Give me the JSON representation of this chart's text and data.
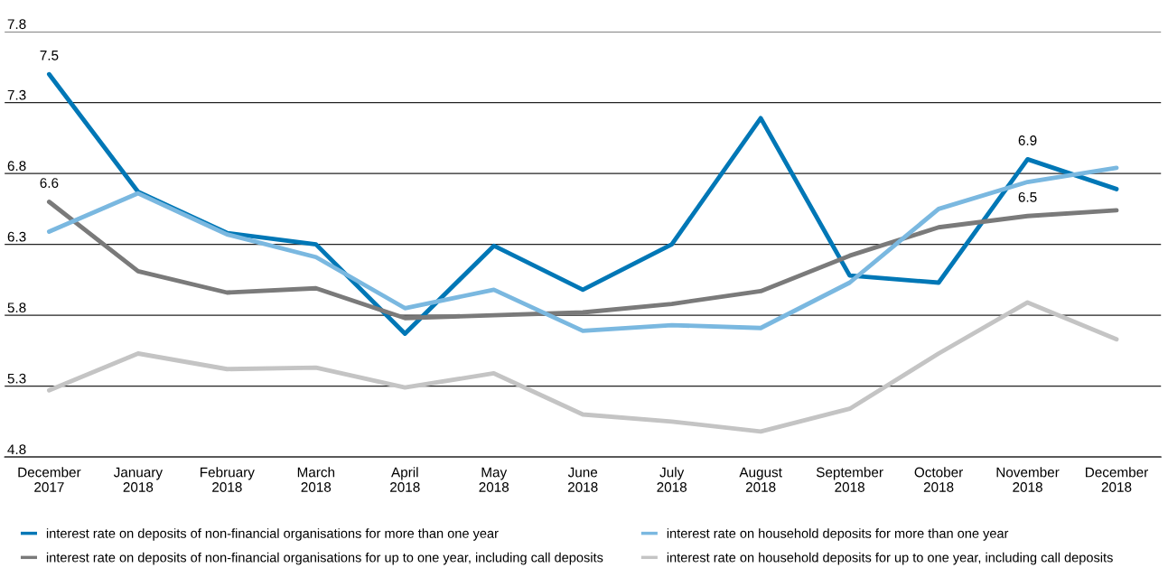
{
  "chart_data": {
    "type": "line",
    "categories": [
      "December\n2017",
      "January\n2018",
      "February\n2018",
      "March\n2018",
      "April\n2018",
      "May\n2018",
      "June\n2018",
      "July\n2018",
      "August\n2018",
      "September\n2018",
      "October\n2018",
      "November\n2018",
      "December\n2018"
    ],
    "series": [
      {
        "name": "interest rate on deposits of non-financial organisations for more than one year",
        "color": "#0077b6",
        "values": [
          7.5,
          6.67,
          6.38,
          6.3,
          5.67,
          6.29,
          5.98,
          6.3,
          7.19,
          6.08,
          6.03,
          6.9,
          6.69
        ],
        "value_labels": [
          "7.5",
          null,
          null,
          null,
          null,
          null,
          null,
          null,
          null,
          null,
          null,
          "6.9",
          null
        ]
      },
      {
        "name": "interest rate on deposits of non-financial organisations for up to one year, including call deposits",
        "color": "#7a7a7a",
        "values": [
          6.6,
          6.11,
          5.96,
          5.99,
          5.78,
          5.8,
          5.82,
          5.88,
          5.97,
          6.22,
          6.42,
          6.5,
          6.54
        ],
        "value_labels": [
          "6.6",
          null,
          null,
          null,
          null,
          null,
          null,
          null,
          null,
          null,
          null,
          "6.5",
          null
        ]
      },
      {
        "name": "interest rate on household deposits for more than one year",
        "color": "#7ab8e0",
        "values": [
          6.39,
          6.66,
          6.37,
          6.21,
          5.85,
          5.98,
          5.69,
          5.73,
          5.71,
          6.03,
          6.55,
          6.74,
          6.84
        ]
      },
      {
        "name": "interest rate on household deposits for up to one year, including call deposits",
        "color": "#c4c4c4",
        "values": [
          5.27,
          5.53,
          5.42,
          5.43,
          5.29,
          5.39,
          5.1,
          5.05,
          4.98,
          5.14,
          5.53,
          5.89,
          5.63
        ]
      }
    ],
    "ylim": [
      4.8,
      7.8
    ],
    "yticks": [
      4.8,
      5.3,
      5.8,
      6.3,
      6.8,
      7.3,
      7.8
    ],
    "grid": "y",
    "legend": "bottom",
    "marker": "none",
    "line_style": "solid"
  }
}
